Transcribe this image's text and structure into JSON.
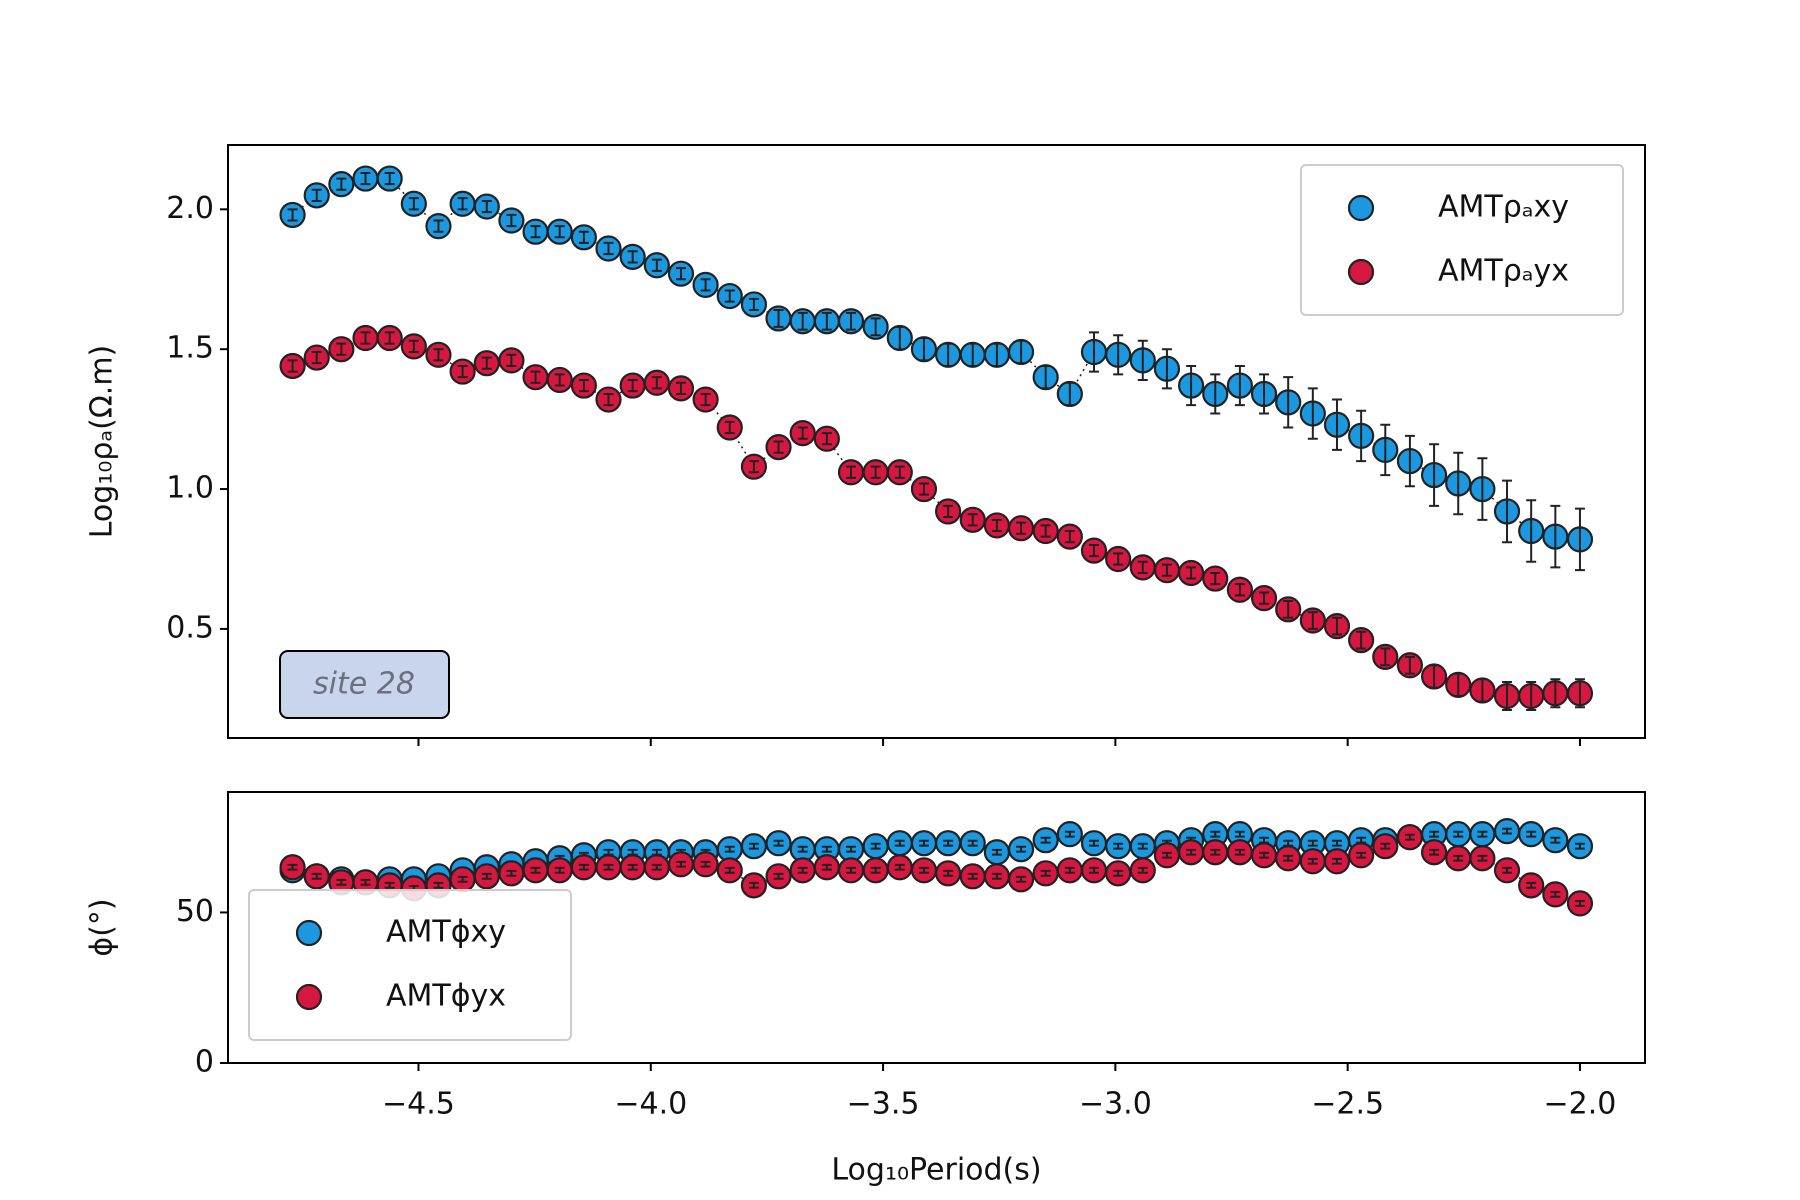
{
  "chart_data": [
    {
      "type": "scatter",
      "ylabel": "Log₁₀ρₐ(Ω.m)",
      "sharex": true,
      "legend": "upper right",
      "annotation": "site 28",
      "x": [
        -4.771,
        -4.719,
        -4.666,
        -4.614,
        -4.562,
        -4.51,
        -4.457,
        -4.405,
        -4.353,
        -4.3,
        -4.248,
        -4.196,
        -4.144,
        -4.091,
        -4.039,
        -3.987,
        -3.935,
        -3.882,
        -3.83,
        -3.778,
        -3.725,
        -3.673,
        -3.621,
        -3.569,
        -3.516,
        -3.464,
        -3.412,
        -3.36,
        -3.307,
        -3.255,
        -3.203,
        -3.15,
        -3.098,
        -3.046,
        -2.994,
        -2.941,
        -2.889,
        -2.837,
        -2.785,
        -2.732,
        -2.68,
        -2.628,
        -2.575,
        -2.523,
        -2.471,
        -2.419,
        -2.366,
        -2.314,
        -2.262,
        -2.21,
        -2.157,
        -2.105,
        -2.053,
        -2.0
      ],
      "series": [
        {
          "name": "AMTρₐxy",
          "color": "#1b98e0",
          "values": [
            1.98,
            2.05,
            2.09,
            2.11,
            2.11,
            2.02,
            1.94,
            2.02,
            2.01,
            1.96,
            1.92,
            1.92,
            1.9,
            1.86,
            1.83,
            1.8,
            1.77,
            1.73,
            1.69,
            1.66,
            1.61,
            1.6,
            1.6,
            1.6,
            1.58,
            1.54,
            1.5,
            1.48,
            1.48,
            1.48,
            1.49,
            1.4,
            1.34,
            1.49,
            1.48,
            1.46,
            1.43,
            1.37,
            1.34,
            1.37,
            1.34,
            1.31,
            1.27,
            1.23,
            1.19,
            1.14,
            1.1,
            1.05,
            1.02,
            1.0,
            0.92,
            0.85,
            0.83,
            0.82
          ],
          "errors": [
            0.02,
            0.02,
            0.02,
            0.02,
            0.02,
            0.02,
            0.02,
            0.02,
            0.02,
            0.02,
            0.02,
            0.02,
            0.02,
            0.02,
            0.02,
            0.02,
            0.02,
            0.02,
            0.02,
            0.02,
            0.03,
            0.03,
            0.03,
            0.03,
            0.03,
            0.04,
            0.04,
            0.04,
            0.04,
            0.04,
            0.04,
            0.04,
            0.04,
            0.07,
            0.07,
            0.07,
            0.07,
            0.07,
            0.07,
            0.07,
            0.07,
            0.09,
            0.09,
            0.09,
            0.09,
            0.09,
            0.09,
            0.11,
            0.11,
            0.11,
            0.11,
            0.11,
            0.11,
            0.11
          ]
        },
        {
          "name": "AMTρₐyx",
          "color": "#d6173f",
          "values": [
            1.44,
            1.47,
            1.5,
            1.54,
            1.54,
            1.51,
            1.48,
            1.42,
            1.45,
            1.46,
            1.4,
            1.39,
            1.37,
            1.32,
            1.37,
            1.38,
            1.36,
            1.32,
            1.22,
            1.08,
            1.15,
            1.2,
            1.18,
            1.06,
            1.06,
            1.06,
            1.0,
            0.92,
            0.89,
            0.87,
            0.86,
            0.85,
            0.83,
            0.78,
            0.75,
            0.72,
            0.71,
            0.7,
            0.68,
            0.64,
            0.61,
            0.57,
            0.53,
            0.51,
            0.46,
            0.4,
            0.37,
            0.33,
            0.3,
            0.28,
            0.26,
            0.26,
            0.27,
            0.27
          ],
          "errors": [
            0.02,
            0.02,
            0.02,
            0.02,
            0.02,
            0.02,
            0.02,
            0.02,
            0.02,
            0.02,
            0.02,
            0.02,
            0.02,
            0.02,
            0.02,
            0.02,
            0.02,
            0.02,
            0.02,
            0.02,
            0.02,
            0.02,
            0.02,
            0.02,
            0.02,
            0.02,
            0.02,
            0.02,
            0.02,
            0.02,
            0.02,
            0.02,
            0.02,
            0.02,
            0.02,
            0.02,
            0.02,
            0.02,
            0.02,
            0.02,
            0.02,
            0.03,
            0.03,
            0.03,
            0.03,
            0.03,
            0.03,
            0.04,
            0.04,
            0.04,
            0.05,
            0.05,
            0.05,
            0.05
          ]
        }
      ],
      "xlim": [
        -4.91,
        -1.86
      ],
      "xticks": [
        -4.5,
        -4.0,
        -3.5,
        -3.0,
        -2.5,
        -2.0
      ],
      "ylim": [
        0.11,
        2.23
      ],
      "yticks": [
        0.5,
        {
          "value": 1.0,
          "label": "1.0"
        },
        1.5,
        {
          "value": 2.0,
          "label": "2.0"
        }
      ]
    },
    {
      "type": "scatter",
      "xlabel": "Log₁₀Period(s)",
      "ylabel": "ϕ(°)",
      "legend": "lower left",
      "x": [
        -4.771,
        -4.719,
        -4.666,
        -4.614,
        -4.562,
        -4.51,
        -4.457,
        -4.405,
        -4.353,
        -4.3,
        -4.248,
        -4.196,
        -4.144,
        -4.091,
        -4.039,
        -3.987,
        -3.935,
        -3.882,
        -3.83,
        -3.778,
        -3.725,
        -3.673,
        -3.621,
        -3.569,
        -3.516,
        -3.464,
        -3.412,
        -3.36,
        -3.307,
        -3.255,
        -3.203,
        -3.15,
        -3.098,
        -3.046,
        -2.994,
        -2.941,
        -2.889,
        -2.837,
        -2.785,
        -2.732,
        -2.68,
        -2.628,
        -2.575,
        -2.523,
        -2.471,
        -2.419,
        -2.366,
        -2.314,
        -2.262,
        -2.21,
        -2.157,
        -2.105,
        -2.053,
        -2.0
      ],
      "series": [
        {
          "name": "AMTϕxy",
          "color": "#1b98e0",
          "values": [
            64,
            62,
            61,
            60,
            61,
            61,
            62,
            64,
            65,
            66,
            67,
            68,
            69,
            70,
            70,
            70,
            70,
            70,
            71,
            72,
            73,
            71,
            71,
            71,
            72,
            73,
            73,
            73,
            73,
            70,
            71,
            74,
            76,
            73,
            72,
            72,
            73,
            74,
            76,
            76,
            74,
            73,
            73,
            73,
            74,
            74,
            75,
            76,
            76,
            76,
            77,
            76,
            74,
            72
          ],
          "errors": [
            0.8,
            0.8,
            0.8,
            0.8,
            0.8,
            0.8,
            0.8,
            0.8,
            0.8,
            0.8,
            0.8,
            0.8,
            0.8,
            0.8,
            0.8,
            0.8,
            0.8,
            0.8,
            0.8,
            0.8,
            0.8,
            0.8,
            0.8,
            0.8,
            0.8,
            0.8,
            0.8,
            0.8,
            0.8,
            0.8,
            0.8,
            0.8,
            0.8,
            0.8,
            0.8,
            0.8,
            0.8,
            0.8,
            0.8,
            0.8,
            0.8,
            0.8,
            0.8,
            0.8,
            0.8,
            0.8,
            0.8,
            0.8,
            0.8,
            0.8,
            0.8,
            0.8,
            0.8,
            0.8
          ]
        },
        {
          "name": "AMTϕyx",
          "color": "#d6173f",
          "values": [
            65,
            62,
            60,
            60,
            59,
            58,
            59,
            61,
            62,
            63,
            64,
            64,
            65,
            65,
            65,
            65,
            66,
            66,
            64,
            59,
            62,
            64,
            65,
            64,
            64,
            65,
            64,
            63,
            62,
            62,
            61,
            63,
            64,
            64,
            63,
            64,
            69,
            70,
            70,
            70,
            69,
            68,
            67,
            67,
            69,
            72,
            75,
            70,
            68,
            68,
            64,
            59,
            56,
            53
          ],
          "errors": [
            0.8,
            0.8,
            0.8,
            0.8,
            0.8,
            0.8,
            0.8,
            0.8,
            0.8,
            0.8,
            0.8,
            0.8,
            0.8,
            0.8,
            0.8,
            0.8,
            0.8,
            0.8,
            0.8,
            0.8,
            0.8,
            0.8,
            0.8,
            0.8,
            0.8,
            0.8,
            0.8,
            0.8,
            0.8,
            0.8,
            0.8,
            0.8,
            0.8,
            0.8,
            0.8,
            0.8,
            0.8,
            0.8,
            0.8,
            0.8,
            0.8,
            0.8,
            0.8,
            0.8,
            0.8,
            0.8,
            0.8,
            0.8,
            0.8,
            0.8,
            0.8,
            0.8,
            0.8,
            0.8
          ]
        }
      ],
      "xlim": [
        -4.91,
        -1.86
      ],
      "xticks": [
        {
          "value": -4.5,
          "label": "−4.5"
        },
        {
          "value": -4.0,
          "label": "−4.0"
        },
        {
          "value": -3.5,
          "label": "−3.5"
        },
        {
          "value": -3.0,
          "label": "−3.0"
        },
        {
          "value": -2.5,
          "label": "−2.5"
        },
        {
          "value": -2.0,
          "label": "−2.0"
        }
      ],
      "ylim": [
        0,
        90
      ],
      "yticks": [
        0,
        50
      ]
    }
  ]
}
